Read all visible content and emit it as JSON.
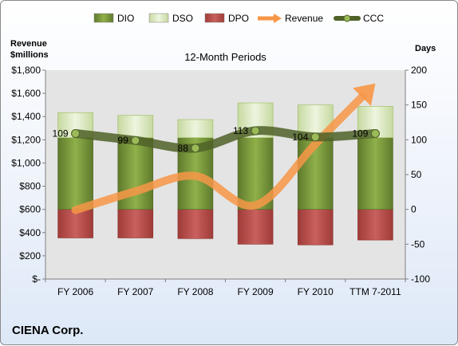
{
  "company": "CIENA Corp.",
  "chart_data": {
    "type": "bar",
    "title": "12-Month Periods",
    "ylabel_left": "Revenue\n$millions",
    "ylabel_right": "Days",
    "categories": [
      "FY 2006",
      "FY 2007",
      "FY 2008",
      "FY 2009",
      "FY 2010",
      "TTM 7-2011"
    ],
    "y_left": {
      "range": [
        0,
        1800
      ],
      "ticks": [
        0,
        200,
        400,
        600,
        800,
        1000,
        1200,
        1400,
        1600,
        1800
      ],
      "tick_labels": [
        "$-",
        "$200",
        "$400",
        "$600",
        "$800",
        "$1,000",
        "$1,200",
        "$1,400",
        "$1,600",
        "$1,800"
      ]
    },
    "y_right": {
      "range": [
        -100,
        200
      ],
      "ticks": [
        -100,
        -50,
        0,
        50,
        100,
        150,
        200
      ]
    },
    "series": [
      {
        "name": "DIO",
        "kind": "stacked-bar-days",
        "color": "#77933c",
        "values": [
          103,
          103,
          103,
          103,
          103,
          103
        ]
      },
      {
        "name": "DSO",
        "kind": "stacked-bar-days",
        "color": "#d7e4bd",
        "values": [
          36,
          32,
          26,
          50,
          47,
          45
        ]
      },
      {
        "name": "DPO",
        "kind": "negative-bar-days",
        "color": "#c0504d",
        "values": [
          -41,
          -41,
          -42,
          -50,
          -51,
          -44
        ]
      },
      {
        "name": "Revenue",
        "kind": "line-arrow-revenue",
        "color": "#f79646",
        "values": [
          -1,
          26,
          48,
          6,
          94,
          181
        ]
      },
      {
        "name": "CCC",
        "kind": "line-days",
        "color": "#4f6228",
        "values": [
          109,
          99,
          88,
          113,
          104,
          109
        ],
        "labels": [
          "109",
          "99",
          "88",
          "113",
          "104",
          "109"
        ]
      }
    ],
    "legend_position": "top",
    "grid": false
  }
}
